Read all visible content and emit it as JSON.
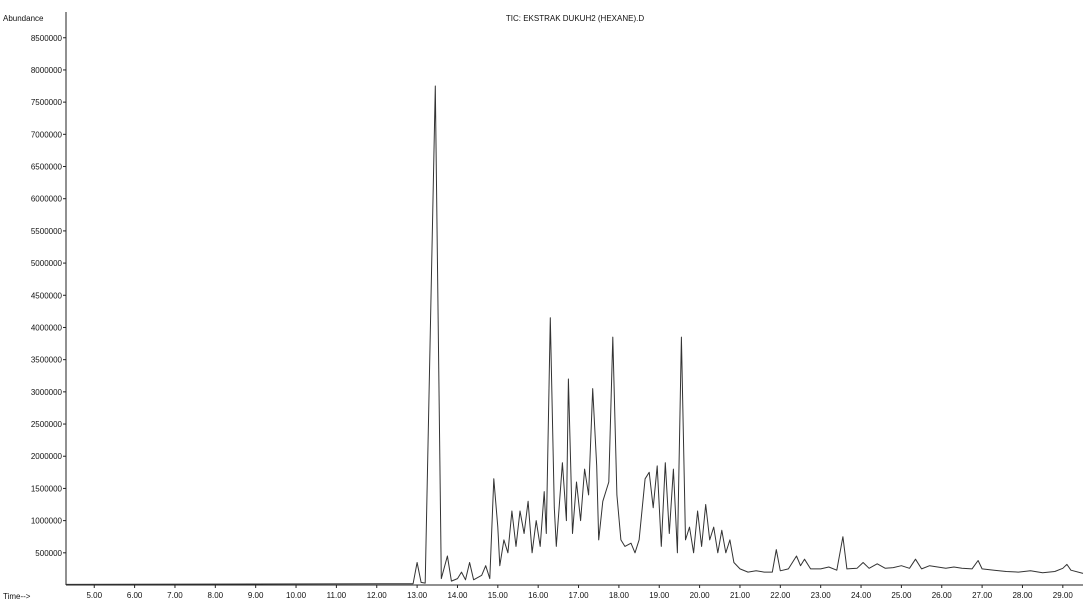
{
  "chart_data": {
    "type": "line",
    "title": "TIC: EKSTRAK DUKUH2 (HEXANE).D",
    "ylabel": "Abundance",
    "xlabel": "Time-->",
    "xlim": [
      4.3,
      29.5
    ],
    "ylim": [
      0,
      8900000
    ],
    "x_ticks": [
      "5.00",
      "6.00",
      "7.00",
      "8.00",
      "9.00",
      "10.00",
      "11.00",
      "12.00",
      "13.00",
      "14.00",
      "15.00",
      "16.00",
      "17.00",
      "18.00",
      "19.00",
      "20.00",
      "21.00",
      "22.00",
      "23.00",
      "24.00",
      "25.00",
      "26.00",
      "27.00",
      "28.00",
      "29.00"
    ],
    "y_ticks": [
      "500000",
      "1000000",
      "1500000",
      "2000000",
      "2500000",
      "3000000",
      "3500000",
      "4000000",
      "4500000",
      "5000000",
      "5500000",
      "6000000",
      "6500000",
      "7000000",
      "7500000",
      "8000000",
      "8500000"
    ],
    "grid": false,
    "series": [
      {
        "values": [
          [
            4.3,
            10000
          ],
          [
            12.9,
            20000
          ],
          [
            13.0,
            350000
          ],
          [
            13.1,
            40000
          ],
          [
            13.2,
            30000
          ],
          [
            13.45,
            7750000
          ],
          [
            13.6,
            100000
          ],
          [
            13.75,
            450000
          ],
          [
            13.85,
            60000
          ],
          [
            14.0,
            100000
          ],
          [
            14.1,
            200000
          ],
          [
            14.2,
            80000
          ],
          [
            14.3,
            350000
          ],
          [
            14.4,
            80000
          ],
          [
            14.6,
            150000
          ],
          [
            14.7,
            300000
          ],
          [
            14.8,
            100000
          ],
          [
            14.9,
            1650000
          ],
          [
            15.0,
            900000
          ],
          [
            15.05,
            300000
          ],
          [
            15.15,
            700000
          ],
          [
            15.25,
            500000
          ],
          [
            15.35,
            1150000
          ],
          [
            15.45,
            600000
          ],
          [
            15.55,
            1150000
          ],
          [
            15.65,
            800000
          ],
          [
            15.75,
            1300000
          ],
          [
            15.85,
            500000
          ],
          [
            15.95,
            1000000
          ],
          [
            16.05,
            600000
          ],
          [
            16.15,
            1450000
          ],
          [
            16.2,
            800000
          ],
          [
            16.3,
            4150000
          ],
          [
            16.4,
            1200000
          ],
          [
            16.45,
            600000
          ],
          [
            16.6,
            1900000
          ],
          [
            16.7,
            1000000
          ],
          [
            16.75,
            3200000
          ],
          [
            16.85,
            800000
          ],
          [
            16.95,
            1600000
          ],
          [
            17.05,
            1000000
          ],
          [
            17.15,
            1800000
          ],
          [
            17.25,
            1400000
          ],
          [
            17.35,
            3050000
          ],
          [
            17.45,
            1850000
          ],
          [
            17.5,
            700000
          ],
          [
            17.6,
            1300000
          ],
          [
            17.75,
            1600000
          ],
          [
            17.85,
            3850000
          ],
          [
            17.95,
            1400000
          ],
          [
            18.05,
            700000
          ],
          [
            18.15,
            600000
          ],
          [
            18.3,
            650000
          ],
          [
            18.4,
            500000
          ],
          [
            18.5,
            700000
          ],
          [
            18.65,
            1650000
          ],
          [
            18.75,
            1750000
          ],
          [
            18.85,
            1200000
          ],
          [
            18.95,
            1850000
          ],
          [
            19.05,
            600000
          ],
          [
            19.15,
            1900000
          ],
          [
            19.25,
            800000
          ],
          [
            19.35,
            1800000
          ],
          [
            19.45,
            500000
          ],
          [
            19.55,
            3850000
          ],
          [
            19.65,
            700000
          ],
          [
            19.75,
            900000
          ],
          [
            19.85,
            500000
          ],
          [
            19.95,
            1150000
          ],
          [
            20.05,
            600000
          ],
          [
            20.15,
            1250000
          ],
          [
            20.25,
            700000
          ],
          [
            20.35,
            900000
          ],
          [
            20.45,
            500000
          ],
          [
            20.55,
            850000
          ],
          [
            20.65,
            500000
          ],
          [
            20.75,
            700000
          ],
          [
            20.85,
            350000
          ],
          [
            21.0,
            250000
          ],
          [
            21.2,
            200000
          ],
          [
            21.4,
            220000
          ],
          [
            21.6,
            200000
          ],
          [
            21.8,
            200000
          ],
          [
            21.9,
            550000
          ],
          [
            22.0,
            220000
          ],
          [
            22.2,
            250000
          ],
          [
            22.4,
            450000
          ],
          [
            22.5,
            300000
          ],
          [
            22.6,
            400000
          ],
          [
            22.75,
            250000
          ],
          [
            23.0,
            250000
          ],
          [
            23.2,
            280000
          ],
          [
            23.4,
            230000
          ],
          [
            23.55,
            750000
          ],
          [
            23.65,
            250000
          ],
          [
            23.9,
            260000
          ],
          [
            24.05,
            350000
          ],
          [
            24.2,
            260000
          ],
          [
            24.4,
            330000
          ],
          [
            24.6,
            260000
          ],
          [
            24.8,
            270000
          ],
          [
            25.0,
            300000
          ],
          [
            25.2,
            260000
          ],
          [
            25.35,
            400000
          ],
          [
            25.5,
            250000
          ],
          [
            25.7,
            300000
          ],
          [
            25.9,
            280000
          ],
          [
            26.1,
            260000
          ],
          [
            26.3,
            280000
          ],
          [
            26.5,
            260000
          ],
          [
            26.75,
            250000
          ],
          [
            26.9,
            380000
          ],
          [
            27.0,
            250000
          ],
          [
            27.3,
            230000
          ],
          [
            27.6,
            210000
          ],
          [
            27.9,
            200000
          ],
          [
            28.2,
            220000
          ],
          [
            28.5,
            190000
          ],
          [
            28.8,
            210000
          ],
          [
            29.0,
            260000
          ],
          [
            29.1,
            320000
          ],
          [
            29.2,
            230000
          ],
          [
            29.5,
            180000
          ]
        ]
      }
    ]
  }
}
